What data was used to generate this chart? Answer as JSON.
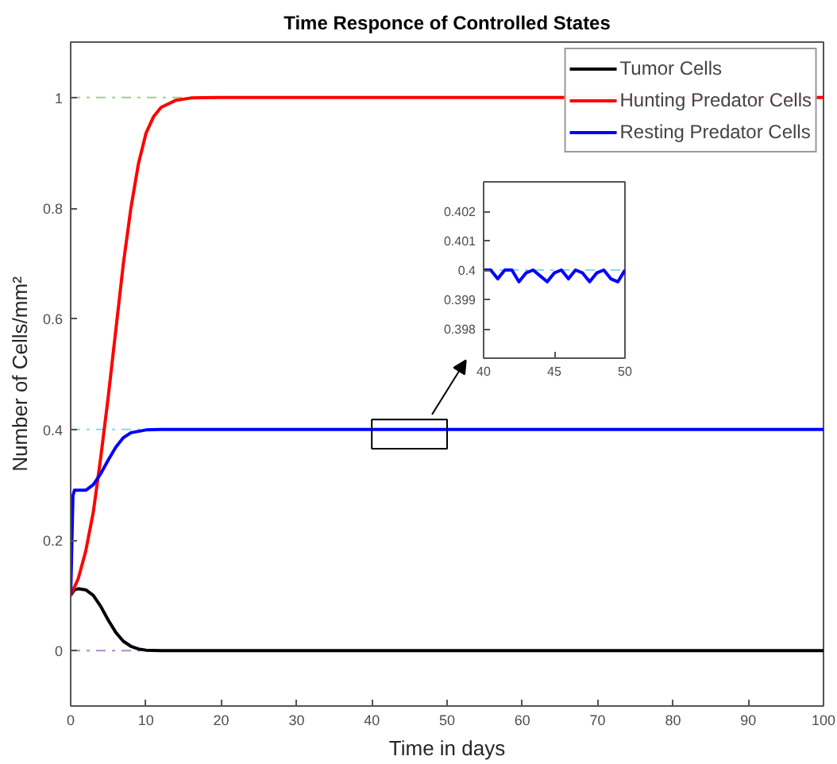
{
  "chart_data": [
    {
      "type": "line",
      "title": "Time Responce of Controlled States",
      "xlabel": "Time in days",
      "ylabel": "Number of Cells/mm²",
      "xlim": [
        0,
        100
      ],
      "ylim": [
        -0.1,
        1.1
      ],
      "xticks": [
        0,
        10,
        20,
        30,
        40,
        50,
        60,
        70,
        80,
        90,
        100
      ],
      "yticks": [
        0,
        0.2,
        0.4,
        0.6,
        0.8,
        1
      ],
      "grid": false,
      "legend": "top right",
      "line_style": "solid",
      "marker": "none",
      "ref_lines": [
        {
          "axis": "y",
          "value": 1,
          "color": "#a8cc88",
          "line_style": "dashdot"
        },
        {
          "axis": "y",
          "value": 0.4,
          "color": "#88d4f0",
          "line_style": "dashdot"
        },
        {
          "axis": "y",
          "value": 0,
          "color": "#b088c8",
          "line_style": "dashdot"
        }
      ],
      "series": [
        {
          "name": "Tumor Cells",
          "color": "#000000",
          "x": [
            0,
            0.5,
            1,
            2,
            3,
            4,
            5,
            6,
            7,
            8,
            9,
            10,
            12,
            100
          ],
          "values": [
            0.1,
            0.11,
            0.112,
            0.11,
            0.1,
            0.08,
            0.055,
            0.033,
            0.017,
            0.008,
            0.003,
            0.001,
            0,
            0
          ]
        },
        {
          "name": "Hunting Predator Cells",
          "color": "#ff0000",
          "x": [
            0,
            1,
            2,
            3,
            4,
            5,
            6,
            7,
            8,
            9,
            10,
            11,
            12,
            14,
            16,
            20,
            100
          ],
          "values": [
            0.1,
            0.13,
            0.18,
            0.25,
            0.35,
            0.46,
            0.58,
            0.7,
            0.8,
            0.88,
            0.935,
            0.965,
            0.982,
            0.995,
            0.999,
            1,
            1
          ]
        },
        {
          "name": "Resting Predator Cells",
          "color": "#0000ff",
          "x": [
            0,
            0.3,
            0.5,
            2,
            3,
            4,
            5,
            6,
            7,
            8,
            10,
            12,
            100
          ],
          "values": [
            0.1,
            0.28,
            0.29,
            0.29,
            0.3,
            0.32,
            0.345,
            0.368,
            0.385,
            0.394,
            0.399,
            0.4,
            0.4
          ]
        }
      ]
    },
    {
      "type": "line",
      "xlim": [
        40,
        50
      ],
      "ylim": [
        0.397,
        0.403
      ],
      "xticks": [
        40,
        45,
        50
      ],
      "yticks": [
        0.398,
        0.399,
        0.4,
        0.401,
        0.402
      ],
      "grid": false,
      "line_style": "solid",
      "marker": "none",
      "ref_lines": [
        {
          "axis": "y",
          "value": 0.4,
          "color": "#88d4f0",
          "line_style": "dashdot"
        }
      ],
      "series": [
        {
          "color": "#0000ff",
          "x": [
            40,
            40.5,
            41,
            41.5,
            42,
            42.5,
            43,
            43.5,
            44,
            44.5,
            45,
            45.5,
            46,
            46.5,
            47,
            47.5,
            48,
            48.5,
            49,
            49.5,
            50
          ],
          "values": [
            0.4,
            0.4,
            0.3997,
            0.4,
            0.4,
            0.3996,
            0.3999,
            0.4,
            0.3998,
            0.3996,
            0.3999,
            0.4,
            0.3997,
            0.4,
            0.3999,
            0.3996,
            0.3999,
            0.4,
            0.3997,
            0.3996,
            0.4
          ]
        }
      ]
    }
  ]
}
